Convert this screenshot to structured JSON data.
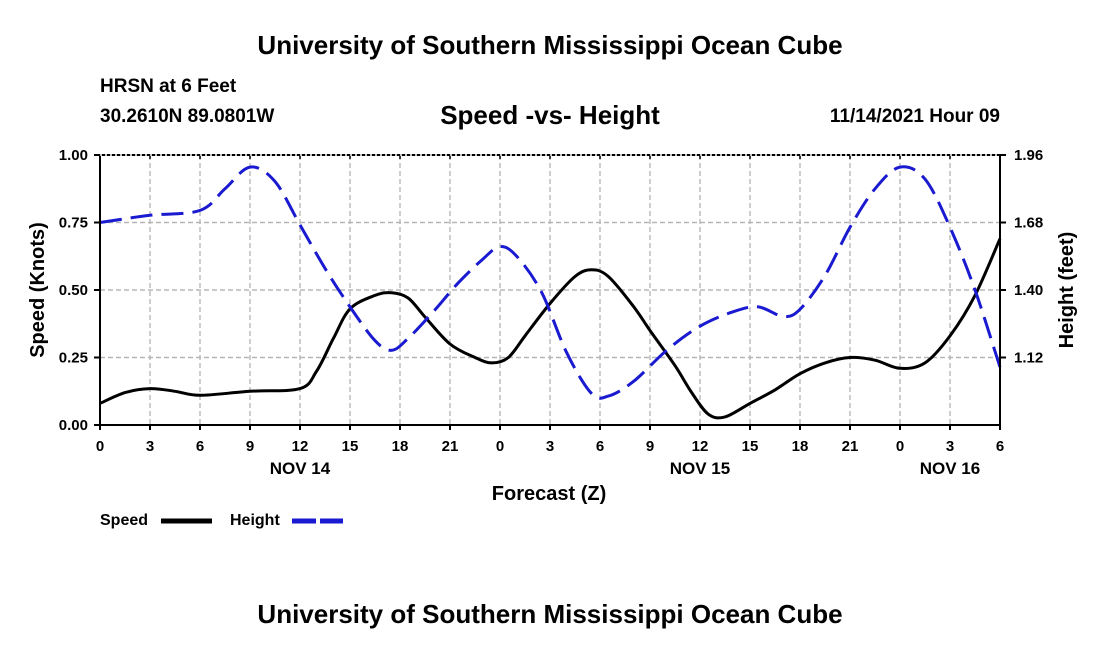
{
  "header": {
    "title": "University of Southern Mississippi Ocean Cube",
    "station": "HRSN at 6 Feet",
    "coords": "30.2610N  89.0801W",
    "datetime": "11/14/2021 Hour 09"
  },
  "footer": {
    "title": "University of Southern Mississippi Ocean Cube"
  },
  "colors": {
    "speed": "#000000",
    "height": "#1a1ad0",
    "grid": "#b4b4b4"
  },
  "chart_data": {
    "type": "line",
    "title": "Speed -vs- Height",
    "xlabel": "Forecast (Z)",
    "ylabel_left": "Speed (Knots)",
    "ylabel_right": "Height (feet)",
    "x_range": [
      0,
      54
    ],
    "x_ticks": [
      0,
      3,
      6,
      9,
      12,
      15,
      18,
      21,
      24,
      27,
      30,
      33,
      36,
      39,
      42,
      45,
      48,
      51,
      54
    ],
    "x_tick_labels": [
      "0",
      "3",
      "6",
      "9",
      "12",
      "15",
      "18",
      "21",
      "0",
      "3",
      "6",
      "9",
      "12",
      "15",
      "18",
      "21",
      "0",
      "3",
      "6"
    ],
    "day_labels": [
      {
        "x": 12,
        "label": "NOV 14"
      },
      {
        "x": 36,
        "label": "NOV 15"
      },
      {
        "x": 51,
        "label": "NOV 16"
      }
    ],
    "y_left": {
      "range": [
        0,
        1
      ],
      "ticks": [
        0,
        0.25,
        0.5,
        0.75,
        1
      ],
      "tick_labels": [
        "0.00",
        "0.25",
        "0.50",
        "0.75",
        "1.00"
      ]
    },
    "y_right": {
      "range": [
        0.84,
        1.96
      ],
      "ticks": [
        1.12,
        1.4,
        1.68,
        1.96
      ],
      "tick_labels": [
        "1.12",
        "1.40",
        "1.68",
        "1.96"
      ]
    },
    "grid": true,
    "legend": {
      "placement": "bottom-left"
    },
    "series": [
      {
        "name": "Speed",
        "axis": "left",
        "style": "solid",
        "x": [
          0,
          1.5,
          3,
          4.5,
          6,
          9,
          12,
          13,
          14,
          15,
          16.5,
          17.5,
          18.5,
          19.5,
          21,
          22.5,
          23.5,
          24.5,
          25.5,
          27,
          28.5,
          29.5,
          30.5,
          32,
          33,
          34.5,
          35.5,
          36.5,
          37.5,
          39,
          40.5,
          42,
          43.5,
          45,
          46.5,
          48,
          49.5,
          51,
          52.5,
          54
        ],
        "y": [
          0.08,
          0.12,
          0.135,
          0.125,
          0.11,
          0.125,
          0.135,
          0.2,
          0.32,
          0.43,
          0.48,
          0.49,
          0.47,
          0.4,
          0.3,
          0.25,
          0.23,
          0.25,
          0.33,
          0.45,
          0.55,
          0.575,
          0.55,
          0.44,
          0.35,
          0.22,
          0.12,
          0.04,
          0.03,
          0.08,
          0.13,
          0.19,
          0.23,
          0.25,
          0.24,
          0.21,
          0.23,
          0.33,
          0.48,
          0.69
        ]
      },
      {
        "name": "Height",
        "axis": "right",
        "style": "dashed",
        "x": [
          0,
          3,
          6,
          7.5,
          9,
          10.5,
          12,
          13.5,
          15,
          16.5,
          17.5,
          18.5,
          20,
          21.5,
          23,
          24,
          25,
          26.5,
          28,
          29.5,
          30.5,
          32,
          34,
          36,
          38,
          39.5,
          41,
          42,
          43.5,
          45,
          46.5,
          48,
          49.5,
          51,
          52.5,
          54
        ],
        "y": [
          1.68,
          1.71,
          1.73,
          1.82,
          1.91,
          1.85,
          1.67,
          1.49,
          1.33,
          1.19,
          1.15,
          1.2,
          1.31,
          1.43,
          1.53,
          1.58,
          1.54,
          1.39,
          1.14,
          0.97,
          0.96,
          1.02,
          1.15,
          1.25,
          1.31,
          1.33,
          1.29,
          1.32,
          1.46,
          1.66,
          1.82,
          1.91,
          1.86,
          1.66,
          1.4,
          1.08
        ]
      }
    ]
  }
}
